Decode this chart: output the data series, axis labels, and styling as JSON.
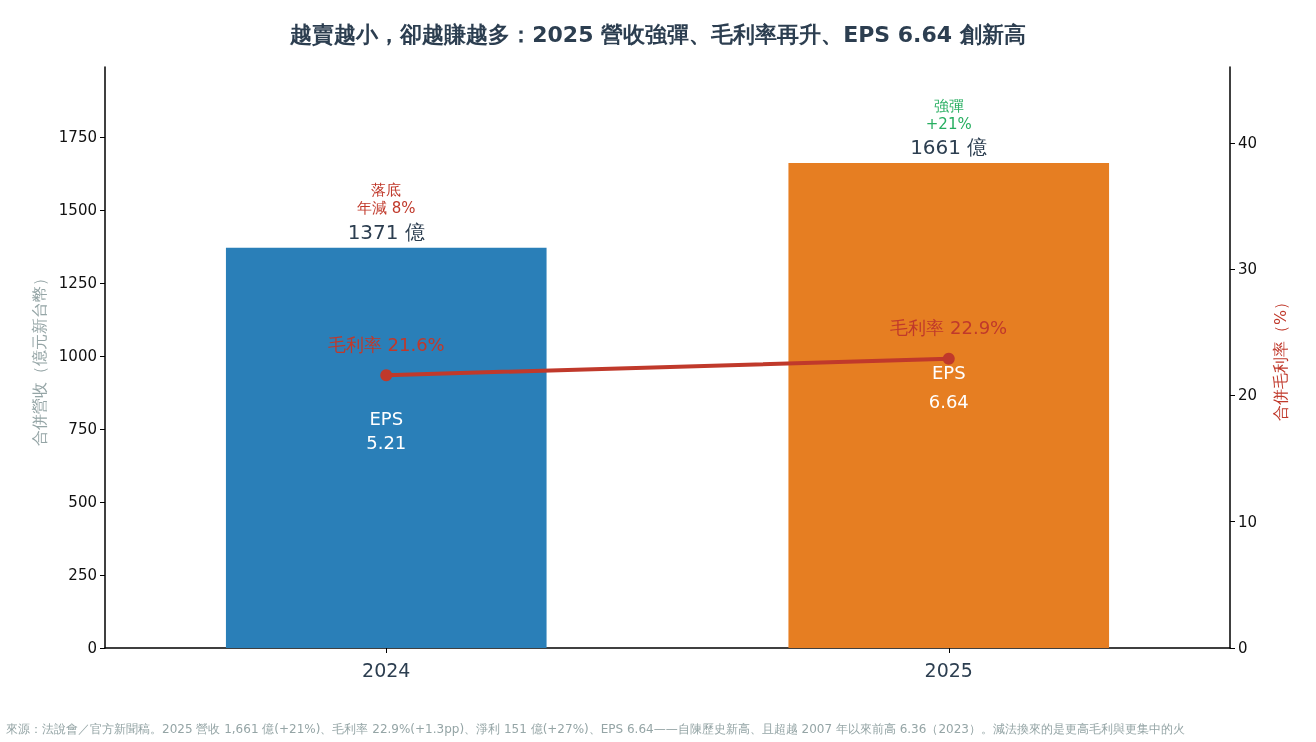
{
  "chart_data": {
    "type": "bar",
    "title": "越賣越小，卻越賺越多：2025 營收強彈、毛利率再升、EPS 6.64 創新高",
    "categories": [
      "2024",
      "2025"
    ],
    "ylabel": "合併營收（億元新台幣）",
    "y2label": "合併毛利率（%）",
    "ylim": [
      0,
      1990
    ],
    "yticks": [
      0,
      250,
      500,
      750,
      1000,
      1250,
      1500,
      1750
    ],
    "y2lim": [
      0,
      46
    ],
    "y2ticks": [
      0,
      10,
      20,
      30,
      40
    ],
    "series": [
      {
        "colors": [
          "#2a7fb8",
          "#e67e22"
        ],
        "values": [
          1371,
          1661
        ],
        "value_labels": [
          "1371 億",
          "1661 億"
        ]
      },
      {
        "type": "line",
        "axis": "y2",
        "color": "#c0392b",
        "values": [
          21.6,
          22.9
        ],
        "value_labels": [
          "毛利率 21.6%",
          "毛利率 22.9%"
        ]
      }
    ],
    "marker": "circle",
    "grid": false,
    "annotations": [
      "落底",
      "年減 8%",
      "強彈",
      "+21%",
      "EPS",
      "5.21",
      "EPS",
      "6.64",
      "來源：法說會／官方新聞稿。2025 營收 1,661 億(+21%)、毛利率 22.9%(+1.3pp)、淨利 151 億(+27%)、EPS 6.64——自陳歷史新高、且超越 2007 年以來前高 6.36（2023）。減法換來的是更高毛利與更集中的火"
    ]
  }
}
